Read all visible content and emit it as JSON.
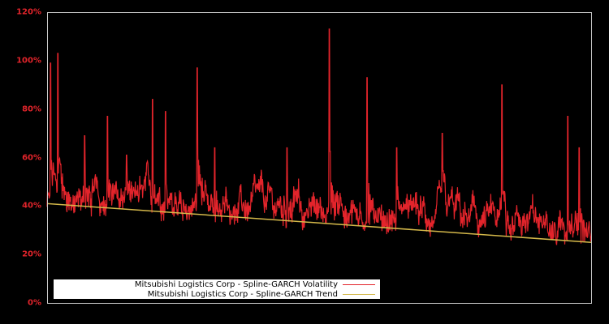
{
  "chart_data": {
    "type": "line",
    "title": "",
    "xlabel": "",
    "ylabel": "",
    "ylim": [
      0,
      120
    ],
    "yticks": [
      "0%",
      "20%",
      "40%",
      "60%",
      "80%",
      "100%",
      "120%"
    ],
    "ytick_values": [
      0,
      20,
      40,
      60,
      80,
      100,
      120
    ],
    "grid": false,
    "legend_position": "lower left",
    "series": [
      {
        "name": "Mitsubishi Logistics Corp - Spline-GARCH Volatility",
        "color": "#e3242b",
        "baseline_start": 36,
        "baseline_end": 22,
        "notable_peaks": [
          {
            "x_frac": 0.006,
            "value": 99
          },
          {
            "x_frac": 0.02,
            "value": 103
          },
          {
            "x_frac": 0.069,
            "value": 69
          },
          {
            "x_frac": 0.111,
            "value": 77
          },
          {
            "x_frac": 0.146,
            "value": 61
          },
          {
            "x_frac": 0.194,
            "value": 84
          },
          {
            "x_frac": 0.218,
            "value": 79
          },
          {
            "x_frac": 0.276,
            "value": 97
          },
          {
            "x_frac": 0.308,
            "value": 64
          },
          {
            "x_frac": 0.441,
            "value": 64
          },
          {
            "x_frac": 0.519,
            "value": 113
          },
          {
            "x_frac": 0.588,
            "value": 93
          },
          {
            "x_frac": 0.643,
            "value": 64
          },
          {
            "x_frac": 0.726,
            "value": 70
          },
          {
            "x_frac": 0.836,
            "value": 90
          },
          {
            "x_frac": 0.957,
            "value": 77
          },
          {
            "x_frac": 0.978,
            "value": 64
          }
        ]
      },
      {
        "name": "Mitsubishi Logistics Corp - Spline-GARCH Trend",
        "color": "#d4b84a",
        "values_start": 41,
        "values_end": 25
      }
    ]
  },
  "legend": {
    "items": [
      {
        "label": "Mitsubishi Logistics Corp - Spline-GARCH Volatility",
        "color": "#e3242b"
      },
      {
        "label": "Mitsubishi Logistics Corp - Spline-GARCH Trend",
        "color": "#d4b84a"
      }
    ]
  }
}
